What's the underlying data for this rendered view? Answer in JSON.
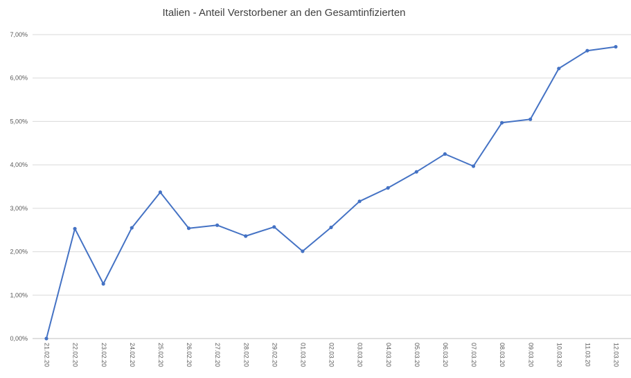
{
  "chart_data": {
    "type": "line",
    "title": "Italien - Anteil Verstorbener an den Gesamtinfizierten",
    "xlabel": "",
    "ylabel": "",
    "categories": [
      "21.02.20",
      "22.02.20",
      "23.02.20",
      "24.02.20",
      "25.02.20",
      "26.02.20",
      "27.02.20",
      "28.02.20",
      "29.02.20",
      "01.03.20",
      "02.03.20",
      "03.03.20",
      "04.03.20",
      "05.03.20",
      "06.03.20",
      "07.03.20",
      "08.03.20",
      "09.03.20",
      "10.03.20",
      "11.03.20",
      "12.03.20"
    ],
    "series": [
      {
        "values": [
          0.0,
          2.53,
          1.26,
          2.55,
          3.37,
          2.54,
          2.61,
          2.36,
          2.57,
          2.01,
          2.56,
          3.16,
          3.47,
          3.84,
          4.25,
          3.97,
          4.97,
          5.05,
          6.22,
          6.63,
          6.72
        ]
      }
    ],
    "ylim": [
      0,
      7
    ],
    "yticks": [
      "0,00%",
      "1,00%",
      "2,00%",
      "3,00%",
      "4,00%",
      "5,00%",
      "6,00%",
      "7,00%"
    ],
    "grid": true,
    "line_color": "#4472C4"
  }
}
